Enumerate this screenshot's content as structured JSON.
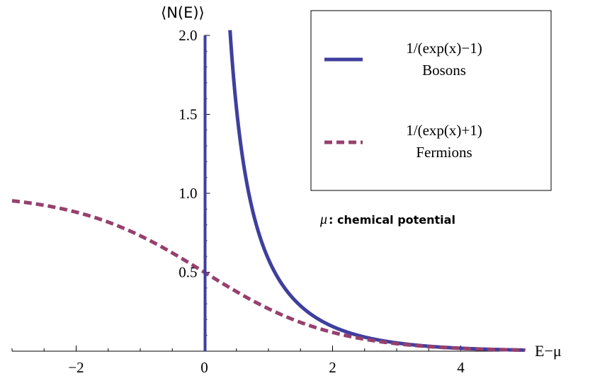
{
  "chart_data": {
    "type": "line",
    "ylabel": "⟨N(E)⟩",
    "xlabel": "E−μ",
    "xlim": [
      -3,
      5
    ],
    "ylim": [
      0,
      2.0
    ],
    "x_ticks": [
      -2,
      0,
      2,
      4
    ],
    "x_tick_labels": [
      "−2",
      "0",
      "2",
      "4"
    ],
    "y_ticks": [
      0.5,
      1.0,
      1.5,
      2.0
    ],
    "y_tick_labels": [
      "0.5",
      "1.0",
      "1.5",
      "2.0"
    ],
    "legend_position": "top-right",
    "annotation": {
      "symbol": "μ",
      "text": ": chemical potential"
    },
    "series": [
      {
        "name": "Bosons",
        "formula": "1/(exp(x)−1)",
        "style": "solid",
        "color": "#3F3F9E",
        "x": [
          0.4,
          0.5,
          0.6,
          0.7,
          0.8,
          0.9,
          1.0,
          1.25,
          1.5,
          1.75,
          2.0,
          2.5,
          3.0,
          3.5,
          4.0,
          4.5,
          5.0
        ],
        "y": [
          2.03,
          1.54,
          1.22,
          0.99,
          0.82,
          0.69,
          0.58,
          0.4,
          0.29,
          0.21,
          0.16,
          0.09,
          0.05,
          0.03,
          0.02,
          0.01,
          0.01
        ]
      },
      {
        "name": "Fermions",
        "formula": "1/(exp(x)+1)",
        "style": "dashed",
        "color": "#96406E",
        "x": [
          -3.0,
          -2.5,
          -2.0,
          -1.5,
          -1.0,
          -0.5,
          0.0,
          0.5,
          1.0,
          1.5,
          2.0,
          2.5,
          3.0,
          3.5,
          4.0,
          4.5,
          5.0
        ],
        "y": [
          0.95,
          0.92,
          0.88,
          0.82,
          0.73,
          0.62,
          0.5,
          0.38,
          0.27,
          0.18,
          0.12,
          0.08,
          0.05,
          0.03,
          0.02,
          0.01,
          0.01
        ]
      }
    ]
  }
}
